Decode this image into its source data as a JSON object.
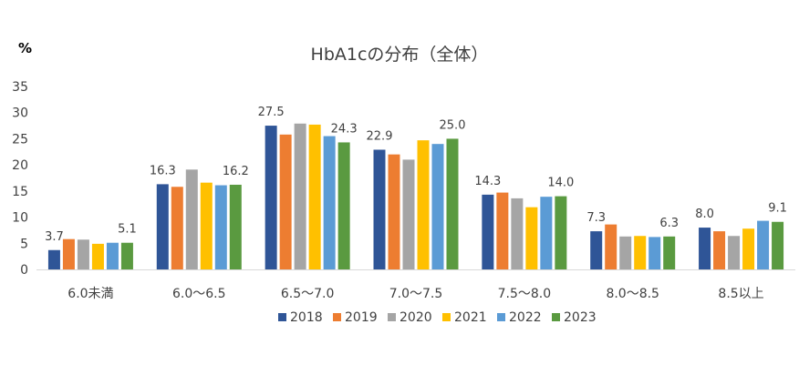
{
  "chart_data": {
    "type": "bar",
    "title": "HbA1cの分布（全体）",
    "ylabel": "%",
    "xlabel": "",
    "ylim": [
      0,
      35
    ],
    "yticks": [
      0,
      5,
      10,
      15,
      20,
      25,
      30,
      35
    ],
    "grid": false,
    "legend_position": "bottom",
    "categories": [
      "6.0未満",
      "6.0～6.5",
      "6.5～7.0",
      "7.0～7.5",
      "7.5～8.0",
      "8.0～8.5",
      "8.5以上"
    ],
    "series": [
      {
        "name": "2018",
        "color": "#2F5597",
        "values": [
          3.7,
          16.3,
          27.5,
          22.9,
          14.3,
          7.3,
          8.0
        ]
      },
      {
        "name": "2019",
        "color": "#ED7D31",
        "values": [
          5.8,
          15.8,
          25.8,
          22.0,
          14.7,
          8.6,
          7.3
        ]
      },
      {
        "name": "2020",
        "color": "#A5A5A5",
        "values": [
          5.7,
          19.1,
          27.9,
          21.0,
          13.6,
          6.3,
          6.4
        ]
      },
      {
        "name": "2021",
        "color": "#FFC000",
        "values": [
          4.9,
          16.6,
          27.7,
          24.7,
          11.9,
          6.4,
          7.8
        ]
      },
      {
        "name": "2022",
        "color": "#5B9BD5",
        "values": [
          5.1,
          16.1,
          25.5,
          24.0,
          13.9,
          6.2,
          9.3
        ]
      },
      {
        "name": "2023",
        "color": "#5A9A40",
        "values": [
          5.1,
          16.2,
          24.3,
          25.0,
          14.0,
          6.3,
          9.1
        ]
      }
    ],
    "data_labels": [
      {
        "category_index": 0,
        "series_index": 0,
        "text": "3.7"
      },
      {
        "category_index": 0,
        "series_index": 5,
        "text": "5.1"
      },
      {
        "category_index": 1,
        "series_index": 0,
        "text": "16.3"
      },
      {
        "category_index": 1,
        "series_index": 5,
        "text": "16.2"
      },
      {
        "category_index": 2,
        "series_index": 0,
        "text": "27.5"
      },
      {
        "category_index": 2,
        "series_index": 5,
        "text": "24.3"
      },
      {
        "category_index": 3,
        "series_index": 0,
        "text": "22.9"
      },
      {
        "category_index": 3,
        "series_index": 5,
        "text": "25.0"
      },
      {
        "category_index": 4,
        "series_index": 0,
        "text": "14.3"
      },
      {
        "category_index": 4,
        "series_index": 5,
        "text": "14.0"
      },
      {
        "category_index": 5,
        "series_index": 0,
        "text": "7.3"
      },
      {
        "category_index": 5,
        "series_index": 5,
        "text": "6.3"
      },
      {
        "category_index": 6,
        "series_index": 0,
        "text": "8.0"
      },
      {
        "category_index": 6,
        "series_index": 5,
        "text": "9.1"
      }
    ]
  }
}
